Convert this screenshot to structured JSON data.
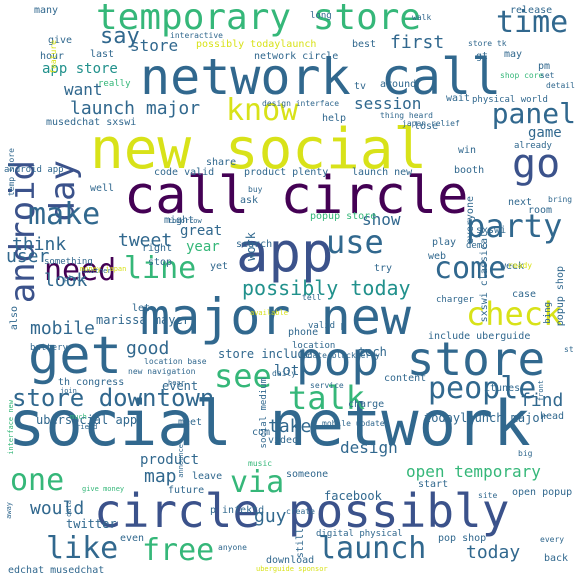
{
  "palette": {
    "dark_purple": "#440154",
    "indigo": "#3b528b",
    "blue": "#31688e",
    "teal": "#21918c",
    "green": "#35b779",
    "lime": "#90d743",
    "yellow": "#d8e219"
  },
  "words": [
    {
      "text": "social network",
      "size": 62,
      "color": "#31688e",
      "rot": 0
    },
    {
      "text": "network call",
      "size": 50,
      "color": "#31688e",
      "rot": 0
    },
    {
      "text": "new social",
      "size": 56,
      "color": "#d8e219",
      "rot": 0
    },
    {
      "text": "call circle",
      "size": 52,
      "color": "#440154",
      "rot": 0
    },
    {
      "text": "major new",
      "size": 50,
      "color": "#31688e",
      "rot": 0
    },
    {
      "text": "circle possibly",
      "size": 46,
      "color": "#3b528b",
      "rot": 0
    },
    {
      "text": "app",
      "size": 54,
      "color": "#3b528b",
      "rot": 0
    },
    {
      "text": "get",
      "size": 52,
      "color": "#31688e",
      "rot": 0
    },
    {
      "text": "pop store",
      "size": 46,
      "color": "#31688e",
      "rot": 0
    },
    {
      "text": "temporary store",
      "size": 36,
      "color": "#35b779",
      "rot": 0
    },
    {
      "text": "android",
      "size": 34,
      "color": "#3b528b",
      "rot": -90
    },
    {
      "text": "day",
      "size": 34,
      "color": "#3b528b",
      "rot": -90
    },
    {
      "text": "go",
      "size": 40,
      "color": "#3b528b",
      "rot": 0
    },
    {
      "text": "time",
      "size": 30,
      "color": "#31688e",
      "rot": 0
    },
    {
      "text": "panel",
      "size": 28,
      "color": "#31688e",
      "rot": 0
    },
    {
      "text": "know",
      "size": 30,
      "color": "#d8e219",
      "rot": 0
    },
    {
      "text": "make",
      "size": 30,
      "color": "#31688e",
      "rot": 0
    },
    {
      "text": "line",
      "size": 30,
      "color": "#35b779",
      "rot": 0
    },
    {
      "text": "use",
      "size": 32,
      "color": "#31688e",
      "rot": 0
    },
    {
      "text": "party",
      "size": 32,
      "color": "#31688e",
      "rot": 0
    },
    {
      "text": "come",
      "size": 30,
      "color": "#31688e",
      "rot": 0
    },
    {
      "text": "need",
      "size": 30,
      "color": "#440154",
      "rot": 0
    },
    {
      "text": "check",
      "size": 32,
      "color": "#d8e219",
      "rot": 0
    },
    {
      "text": "see",
      "size": 32,
      "color": "#35b779",
      "rot": 0
    },
    {
      "text": "talk",
      "size": 32,
      "color": "#35b779",
      "rot": 0
    },
    {
      "text": "people",
      "size": 30,
      "color": "#31688e",
      "rot": 0
    },
    {
      "text": "store downtown",
      "size": 24,
      "color": "#31688e",
      "rot": 0
    },
    {
      "text": "one",
      "size": 30,
      "color": "#35b779",
      "rot": 0
    },
    {
      "text": "via",
      "size": 30,
      "color": "#35b779",
      "rot": 0
    },
    {
      "text": "like",
      "size": 30,
      "color": "#31688e",
      "rot": 0
    },
    {
      "text": "free",
      "size": 30,
      "color": "#35b779",
      "rot": 0
    },
    {
      "text": "launch",
      "size": 30,
      "color": "#31688e",
      "rot": 0
    },
    {
      "text": "possibly today",
      "size": 20,
      "color": "#21918c",
      "rot": 0
    },
    {
      "text": "mobile",
      "size": 18,
      "color": "#31688e",
      "rot": 0
    },
    {
      "text": "say",
      "size": 22,
      "color": "#31688e",
      "rot": 0
    },
    {
      "text": "first",
      "size": 18,
      "color": "#31688e",
      "rot": 0
    },
    {
      "text": "launch major",
      "size": 18,
      "color": "#31688e",
      "rot": 0
    },
    {
      "text": "want",
      "size": 16,
      "color": "#31688e",
      "rot": 0
    },
    {
      "text": "store",
      "size": 16,
      "color": "#31688e",
      "rot": 0
    },
    {
      "text": "app store",
      "size": 14,
      "color": "#21918c",
      "rot": 0
    },
    {
      "text": "session",
      "size": 16,
      "color": "#31688e",
      "rot": 0
    },
    {
      "text": "game",
      "size": 14,
      "color": "#31688e",
      "rot": 0
    },
    {
      "text": "think",
      "size": 18,
      "color": "#31688e",
      "rot": 0
    },
    {
      "text": "tweet",
      "size": 18,
      "color": "#31688e",
      "rot": 0
    },
    {
      "text": "user",
      "size": 18,
      "color": "#31688e",
      "rot": 0
    },
    {
      "text": "look",
      "size": 18,
      "color": "#31688e",
      "rot": 0
    },
    {
      "text": "good",
      "size": 18,
      "color": "#31688e",
      "rot": 0
    },
    {
      "text": "show",
      "size": 16,
      "color": "#31688e",
      "rot": 0
    },
    {
      "text": "great",
      "size": 14,
      "color": "#31688e",
      "rot": 0
    },
    {
      "text": "year",
      "size": 14,
      "color": "#35b779",
      "rot": 0
    },
    {
      "text": "design",
      "size": 16,
      "color": "#31688e",
      "rot": 0
    },
    {
      "text": "map",
      "size": 18,
      "color": "#31688e",
      "rot": 0
    },
    {
      "text": "would",
      "size": 18,
      "color": "#31688e",
      "rot": 0
    },
    {
      "text": "guy",
      "size": 18,
      "color": "#31688e",
      "rot": 0
    },
    {
      "text": "find",
      "size": 18,
      "color": "#31688e",
      "rot": 0
    },
    {
      "text": "today",
      "size": 18,
      "color": "#31688e",
      "rot": 0
    },
    {
      "text": "take",
      "size": 18,
      "color": "#31688e",
      "rot": 0
    },
    {
      "text": "open temporary",
      "size": 16,
      "color": "#35b779",
      "rot": 0
    },
    {
      "text": "todaylaunch major",
      "size": 12,
      "color": "#31688e",
      "rot": 0
    },
    {
      "text": "ubersocial app",
      "size": 12,
      "color": "#31688e",
      "rot": 0
    },
    {
      "text": "product",
      "size": 14,
      "color": "#31688e",
      "rot": 0
    },
    {
      "text": "facebook",
      "size": 12,
      "color": "#31688e",
      "rot": 0
    },
    {
      "text": "twitter",
      "size": 12,
      "color": "#31688e",
      "rot": 0
    },
    {
      "text": "marissa mayer",
      "size": 12,
      "color": "#31688e",
      "rot": 0
    },
    {
      "text": "lot",
      "size": 14,
      "color": "#31688e",
      "rot": 0
    },
    {
      "text": "tech",
      "size": 12,
      "color": "#31688e",
      "rot": 0
    },
    {
      "text": "event",
      "size": 12,
      "color": "#31688e",
      "rot": 0
    },
    {
      "text": "store include",
      "size": 12,
      "color": "#31688e",
      "rot": 0
    },
    {
      "text": "include uberguide",
      "size": 10,
      "color": "#31688e",
      "rot": 0
    },
    {
      "text": "content",
      "size": 10,
      "color": "#31688e",
      "rot": 0
    },
    {
      "text": "itunes",
      "size": 10,
      "color": "#31688e",
      "rot": 0
    },
    {
      "text": "head",
      "size": 10,
      "color": "#31688e",
      "rot": 0
    },
    {
      "text": "work",
      "size": 12,
      "color": "#31688e",
      "rot": -90
    },
    {
      "text": "search",
      "size": 10,
      "color": "#31688e",
      "rot": 0
    },
    {
      "text": "popup store",
      "size": 10,
      "color": "#35b779",
      "rot": 0
    },
    {
      "text": "code valid",
      "size": 10,
      "color": "#31688e",
      "rot": 0
    },
    {
      "text": "product plenty",
      "size": 10,
      "color": "#31688e",
      "rot": 0
    },
    {
      "text": "launch new",
      "size": 10,
      "color": "#31688e",
      "rot": 0
    },
    {
      "text": "sxswi classical",
      "size": 10,
      "color": "#31688e",
      "rot": -90
    },
    {
      "text": "everyone",
      "size": 10,
      "color": "#31688e",
      "rot": -90
    },
    {
      "text": "win",
      "size": 10,
      "color": "#31688e",
      "rot": 0
    },
    {
      "text": "possibly todaylaunch",
      "size": 10,
      "color": "#d8e219",
      "rot": 0
    },
    {
      "text": "network circle",
      "size": 10,
      "color": "#31688e",
      "rot": 0
    },
    {
      "text": "best",
      "size": 10,
      "color": "#31688e",
      "rot": 0
    },
    {
      "text": "release",
      "size": 10,
      "color": "#31688e",
      "rot": 0
    },
    {
      "text": "many",
      "size": 10,
      "color": "#31688e",
      "rot": 0
    },
    {
      "text": "give",
      "size": 10,
      "color": "#31688e",
      "rot": 0
    },
    {
      "text": "hour",
      "size": 10,
      "color": "#31688e",
      "rot": 0
    },
    {
      "text": "last",
      "size": 10,
      "color": "#31688e",
      "rot": 0
    },
    {
      "text": "tv",
      "size": 10,
      "color": "#31688e",
      "rot": 0
    },
    {
      "text": "musedchat sxswi",
      "size": 10,
      "color": "#31688e",
      "rot": 0
    },
    {
      "text": "android app",
      "size": 9,
      "color": "#31688e",
      "rot": 0
    },
    {
      "text": "well",
      "size": 10,
      "color": "#31688e",
      "rot": 0
    },
    {
      "text": "share",
      "size": 10,
      "color": "#31688e",
      "rot": 0
    },
    {
      "text": "help",
      "size": 10,
      "color": "#31688e",
      "rot": 0
    },
    {
      "text": "lose",
      "size": 10,
      "color": "#31688e",
      "rot": 0
    },
    {
      "text": "wait",
      "size": 10,
      "color": "#31688e",
      "rot": 0
    },
    {
      "text": "physical world",
      "size": 9,
      "color": "#31688e",
      "rot": 0
    },
    {
      "text": "already",
      "size": 9,
      "color": "#31688e",
      "rot": 0
    },
    {
      "text": "pm",
      "size": 10,
      "color": "#31688e",
      "rot": 0
    },
    {
      "text": "gt",
      "size": 10,
      "color": "#31688e",
      "rot": 0
    },
    {
      "text": "may",
      "size": 10,
      "color": "#31688e",
      "rot": 0
    },
    {
      "text": "around",
      "size": 10,
      "color": "#31688e",
      "rot": 0
    },
    {
      "text": "ask",
      "size": 10,
      "color": "#31688e",
      "rot": 0
    },
    {
      "text": "might",
      "size": 10,
      "color": "#31688e",
      "rot": 0
    },
    {
      "text": "next",
      "size": 10,
      "color": "#31688e",
      "rot": 0
    },
    {
      "text": "booth",
      "size": 10,
      "color": "#31688e",
      "rot": 0
    },
    {
      "text": "stop",
      "size": 10,
      "color": "#31688e",
      "rot": 0
    },
    {
      "text": "right",
      "size": 10,
      "color": "#31688e",
      "rot": 0
    },
    {
      "text": "yet",
      "size": 10,
      "color": "#31688e",
      "rot": 0
    },
    {
      "text": "something",
      "size": 9,
      "color": "#31688e",
      "rot": 0
    },
    {
      "text": "room",
      "size": 10,
      "color": "#31688e",
      "rot": 0
    },
    {
      "text": "play",
      "size": 10,
      "color": "#31688e",
      "rot": 0
    },
    {
      "text": "demo",
      "size": 9,
      "color": "#31688e",
      "rot": 0
    },
    {
      "text": "sxswi",
      "size": 10,
      "color": "#31688e",
      "rot": 0
    },
    {
      "text": "try",
      "size": 10,
      "color": "#31688e",
      "rot": 0
    },
    {
      "text": "web",
      "size": 10,
      "color": "#31688e",
      "rot": 0
    },
    {
      "text": "week",
      "size": 10,
      "color": "#31688e",
      "rot": 0
    },
    {
      "text": "case",
      "size": 10,
      "color": "#31688e",
      "rot": 0
    },
    {
      "text": "charger",
      "size": 9,
      "color": "#31688e",
      "rot": 0
    },
    {
      "text": "popup shop",
      "size": 10,
      "color": "#31688e",
      "rot": -90
    },
    {
      "text": "bing",
      "size": 9,
      "color": "#31688e",
      "rot": -90
    },
    {
      "text": "also",
      "size": 10,
      "color": "#31688e",
      "rot": -90
    },
    {
      "text": "let",
      "size": 10,
      "color": "#31688e",
      "rot": 0
    },
    {
      "text": "battery",
      "size": 9,
      "color": "#31688e",
      "rot": 0
    },
    {
      "text": "valid p",
      "size": 9,
      "color": "#31688e",
      "rot": 0
    },
    {
      "text": "phone",
      "size": 10,
      "color": "#31688e",
      "rot": 0
    },
    {
      "text": "location",
      "size": 9,
      "color": "#31688e",
      "rot": 0
    },
    {
      "text": "th congress",
      "size": 10,
      "color": "#31688e",
      "rot": 0
    },
    {
      "text": "daily",
      "size": 8,
      "color": "#31688e",
      "rot": 0
    },
    {
      "text": "service",
      "size": 8,
      "color": "#31688e",
      "rot": 0
    },
    {
      "text": "charge",
      "size": 10,
      "color": "#31688e",
      "rot": 0
    },
    {
      "text": "mobile update",
      "size": 8,
      "color": "#31688e",
      "rot": 0
    },
    {
      "text": "meet",
      "size": 10,
      "color": "#31688e",
      "rot": 0
    },
    {
      "text": "video",
      "size": 10,
      "color": "#31688e",
      "rot": 0
    },
    {
      "text": "someone",
      "size": 10,
      "color": "#31688e",
      "rot": 0
    },
    {
      "text": "leave",
      "size": 10,
      "color": "#31688e",
      "rot": 0
    },
    {
      "text": "future",
      "size": 10,
      "color": "#31688e",
      "rot": 0
    },
    {
      "text": "start",
      "size": 10,
      "color": "#31688e",
      "rot": 0
    },
    {
      "text": "open popup",
      "size": 10,
      "color": "#31688e",
      "rot": 0
    },
    {
      "text": "p infektd",
      "size": 10,
      "color": "#31688e",
      "rot": 0
    },
    {
      "text": "create",
      "size": 8,
      "color": "#31688e",
      "rot": 0
    },
    {
      "text": "still",
      "size": 10,
      "color": "#31688e",
      "rot": -90
    },
    {
      "text": "digital physical",
      "size": 9,
      "color": "#31688e",
      "rot": 0
    },
    {
      "text": "pop shop",
      "size": 10,
      "color": "#31688e",
      "rot": 0
    },
    {
      "text": "even",
      "size": 10,
      "color": "#31688e",
      "rot": 0
    },
    {
      "text": "anyone",
      "size": 8,
      "color": "#31688e",
      "rot": 0
    },
    {
      "text": "download",
      "size": 10,
      "color": "#31688e",
      "rot": 0
    },
    {
      "text": "edchat musedchat",
      "size": 10,
      "color": "#31688e",
      "rot": 0
    },
    {
      "text": "back",
      "size": 10,
      "color": "#31688e",
      "rot": 0
    },
    {
      "text": "every",
      "size": 8,
      "color": "#31688e",
      "rot": 0
    },
    {
      "text": "site",
      "size": 8,
      "color": "#31688e",
      "rot": 0
    },
    {
      "text": "big",
      "size": 8,
      "color": "#31688e",
      "rot": 0
    },
    {
      "text": "music",
      "size": 8,
      "color": "#35b779",
      "rot": 0
    },
    {
      "text": "com",
      "size": 10,
      "color": "#31688e",
      "rot": 0
    },
    {
      "text": "new navigation",
      "size": 8,
      "color": "#31688e",
      "rot": 0
    },
    {
      "text": "location base",
      "size": 8,
      "color": "#31688e",
      "rot": 0
    },
    {
      "text": "update blackberry",
      "size": 8,
      "color": "#31688e",
      "rot": 0
    },
    {
      "text": "social medium",
      "size": 9,
      "color": "#31688e",
      "rot": -90
    },
    {
      "text": "interactive",
      "size": 8,
      "color": "#31688e",
      "rot": 0
    },
    {
      "text": "design interface",
      "size": 8,
      "color": "#31688e",
      "rot": 0
    },
    {
      "text": "thing heard",
      "size": 8,
      "color": "#31688e",
      "rot": 0
    },
    {
      "text": "japan relief",
      "size": 8,
      "color": "#31688e",
      "rot": 0
    },
    {
      "text": "temp store",
      "size": 8,
      "color": "#31688e",
      "rot": -90
    },
    {
      "text": "feature",
      "size": 8,
      "color": "#d8e219",
      "rot": -90
    },
    {
      "text": "long",
      "size": 9,
      "color": "#31688e",
      "rot": 0
    },
    {
      "text": "walk",
      "size": 8,
      "color": "#31688e",
      "rot": 0
    },
    {
      "text": "shop core",
      "size": 8,
      "color": "#35b779",
      "rot": 0
    },
    {
      "text": "store tk",
      "size": 8,
      "color": "#31688e",
      "rot": 0
    },
    {
      "text": "set",
      "size": 8,
      "color": "#31688e",
      "rot": 0
    },
    {
      "text": "detail",
      "size": 8,
      "color": "#31688e",
      "rot": 0
    },
    {
      "text": "really",
      "size": 9,
      "color": "#35b779",
      "rot": 0
    },
    {
      "text": "buy",
      "size": 8,
      "color": "#31688e",
      "rot": 0
    },
    {
      "text": "bring",
      "size": 8,
      "color": "#31688e",
      "rot": 0
    },
    {
      "text": "tomorrow",
      "size": 7,
      "color": "#31688e",
      "rot": 0
    },
    {
      "text": "another",
      "size": 7,
      "color": "#31688e",
      "rot": 0
    },
    {
      "text": "money japan",
      "size": 7,
      "color": "#d8e219",
      "rot": 0
    },
    {
      "text": "place",
      "size": 7,
      "color": "#31688e",
      "rot": 0
    },
    {
      "text": "available",
      "size": 7,
      "color": "#d8e219",
      "rot": 0
    },
    {
      "text": "ready",
      "size": 8,
      "color": "#d8e219",
      "rot": 0
    },
    {
      "text": "tell",
      "size": 8,
      "color": "#31688e",
      "rot": 0
    },
    {
      "text": "front",
      "size": 7,
      "color": "#31688e",
      "rot": -90
    },
    {
      "text": "st",
      "size": 8,
      "color": "#31688e",
      "rot": 0
    },
    {
      "text": "hear",
      "size": 7,
      "color": "#31688e",
      "rot": 0
    },
    {
      "text": "join",
      "size": 7,
      "color": "#31688e",
      "rot": 0
    },
    {
      "text": "interface new",
      "size": 7,
      "color": "#35b779",
      "rot": -90
    },
    {
      "text": "much",
      "size": 7,
      "color": "#35b779",
      "rot": 0
    },
    {
      "text": "friend",
      "size": 7,
      "color": "#31688e",
      "rot": 0
    },
    {
      "text": "announce",
      "size": 7,
      "color": "#31688e",
      "rot": -90
    },
    {
      "text": "away",
      "size": 7,
      "color": "#31688e",
      "rot": -90
    },
    {
      "text": "give money",
      "size": 7,
      "color": "#35b779",
      "rot": 0
    },
    {
      "text": "data",
      "size": 7,
      "color": "#31688e",
      "rot": -90
    },
    {
      "text": "uberguide sponsor",
      "size": 7,
      "color": "#d8e219",
      "rot": 0
    }
  ]
}
